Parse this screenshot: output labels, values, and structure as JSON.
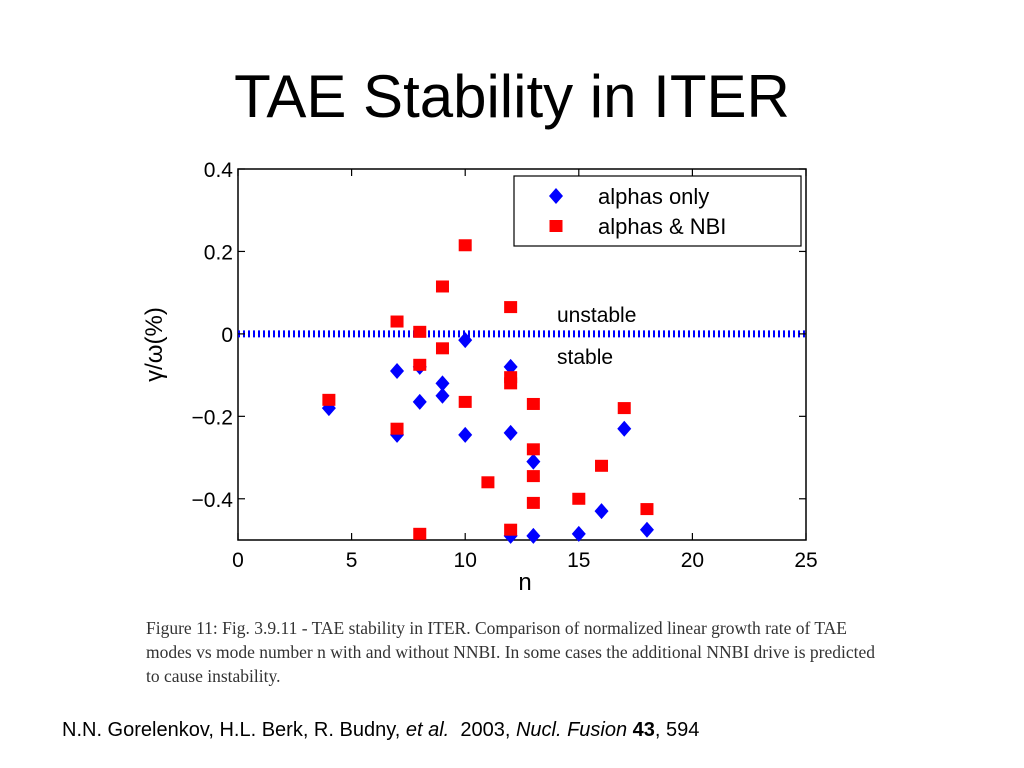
{
  "slide": {
    "title": "TAE Stability in ITER"
  },
  "chart_data": {
    "type": "scatter",
    "xlabel": "n",
    "ylabel": "γ/ω(%)",
    "xlim": [
      0,
      25
    ],
    "ylim": [
      -0.5,
      0.4
    ],
    "xticks": [
      "0",
      "5",
      "10",
      "15",
      "20",
      "25"
    ],
    "yticks": [
      "0.4",
      "0.2",
      "0",
      "−0.2",
      "−0.4"
    ],
    "grid": false,
    "legend": "top-right",
    "threshold": {
      "y": 0,
      "above_label": "unstable",
      "below_label": "stable"
    },
    "series": [
      {
        "name": "alphas only",
        "color": "#0000ff",
        "marker": "diamond",
        "points": [
          [
            4,
            -0.18
          ],
          [
            7,
            -0.09
          ],
          [
            7,
            -0.245
          ],
          [
            8,
            -0.08
          ],
          [
            8,
            -0.165
          ],
          [
            9,
            -0.12
          ],
          [
            9,
            -0.15
          ],
          [
            10,
            -0.015
          ],
          [
            10,
            -0.245
          ],
          [
            12,
            -0.08
          ],
          [
            12,
            -0.24
          ],
          [
            12,
            -0.49
          ],
          [
            13,
            -0.31
          ],
          [
            13,
            -0.49
          ],
          [
            15,
            -0.485
          ],
          [
            16,
            -0.43
          ],
          [
            17,
            -0.23
          ],
          [
            18,
            -0.475
          ]
        ]
      },
      {
        "name": "alphas & NBI",
        "color": "#ff0000",
        "marker": "square",
        "points": [
          [
            4,
            -0.16
          ],
          [
            7,
            0.03
          ],
          [
            7,
            -0.23
          ],
          [
            8,
            0.005
          ],
          [
            8,
            -0.075
          ],
          [
            8,
            -0.485
          ],
          [
            9,
            0.115
          ],
          [
            9,
            -0.035
          ],
          [
            10,
            0.215
          ],
          [
            10,
            -0.165
          ],
          [
            11,
            -0.36
          ],
          [
            12,
            0.065
          ],
          [
            12,
            -0.105
          ],
          [
            12,
            -0.12
          ],
          [
            12,
            -0.475
          ],
          [
            13,
            -0.17
          ],
          [
            13,
            -0.28
          ],
          [
            13,
            -0.345
          ],
          [
            13,
            -0.41
          ],
          [
            15,
            -0.4
          ],
          [
            16,
            -0.32
          ],
          [
            17,
            -0.18
          ],
          [
            18,
            -0.425
          ]
        ]
      }
    ]
  },
  "caption": "Figure 11: Fig. 3.9.11 - TAE stability in ITER. Comparison of normalized linear growth rate of TAE modes vs mode number n with and without NNBI. In some cases the additional NNBI drive is predicted to cause instability.",
  "citation": {
    "authors": "N.N. Gorelenkov, H.L. Berk, R. Budny,",
    "etal": "et al.",
    "year": "2003,",
    "journal": "Nucl. Fusion",
    "volume": "43",
    "page": ", 594"
  }
}
